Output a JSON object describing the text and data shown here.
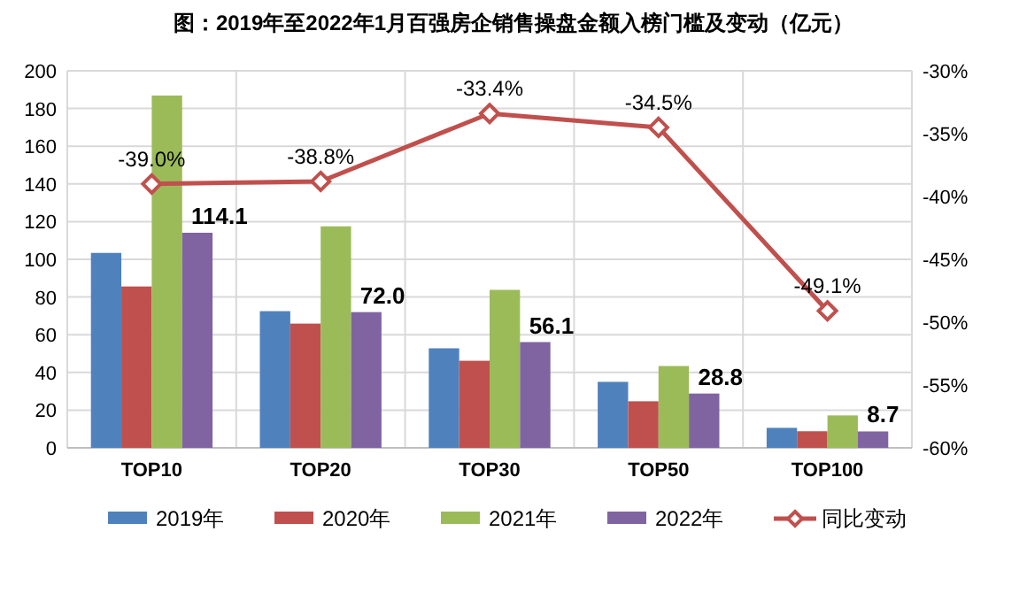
{
  "chart_data": {
    "type": "bar",
    "title": "图：2019年至2022年1月百强房企销售操盘金额入榜门槛及变动（亿元）",
    "categories": [
      "TOP10",
      "TOP20",
      "TOP30",
      "TOP50",
      "TOP100"
    ],
    "series": [
      {
        "name": "2019年",
        "color": "#4f81bd",
        "values": [
          103.4,
          72.5,
          52.8,
          35.0,
          10.6
        ]
      },
      {
        "name": "2020年",
        "color": "#c0504d",
        "values": [
          85.6,
          65.9,
          46.2,
          24.7,
          8.8
        ]
      },
      {
        "name": "2021年",
        "color": "#9bbb59",
        "values": [
          186.9,
          117.5,
          83.8,
          43.4,
          17.2
        ]
      },
      {
        "name": "2022年",
        "color": "#8064a2",
        "values": [
          114.1,
          72.0,
          56.1,
          28.8,
          8.7
        ],
        "value_labels": [
          "114.1",
          "72.0",
          "56.1",
          "28.8",
          "8.7"
        ]
      },
      {
        "name": "同比变动",
        "type": "line",
        "axis": "y2",
        "color": "#c0504d",
        "marker": "diamond",
        "values": [
          -39.0,
          -38.8,
          -33.4,
          -34.5,
          -49.1
        ],
        "value_labels": [
          "-39.0%",
          "-38.8%",
          "-33.4%",
          "-34.5%",
          "-49.1%"
        ]
      }
    ],
    "ylim": [
      0,
      200
    ],
    "yticks": [
      0,
      20,
      40,
      60,
      80,
      100,
      120,
      140,
      160,
      180,
      200
    ],
    "y2lim": [
      -60,
      -30
    ],
    "y2ticks": [
      {
        "value": -60,
        "label": "-60%"
      },
      {
        "value": -55,
        "label": "-55%"
      },
      {
        "value": -50,
        "label": "-50%"
      },
      {
        "value": -45,
        "label": "-45%"
      },
      {
        "value": -40,
        "label": "-40%"
      },
      {
        "value": -35,
        "label": "-35%"
      },
      {
        "value": -30,
        "label": "-30%"
      }
    ],
    "grid": true,
    "legend": "bottom"
  }
}
